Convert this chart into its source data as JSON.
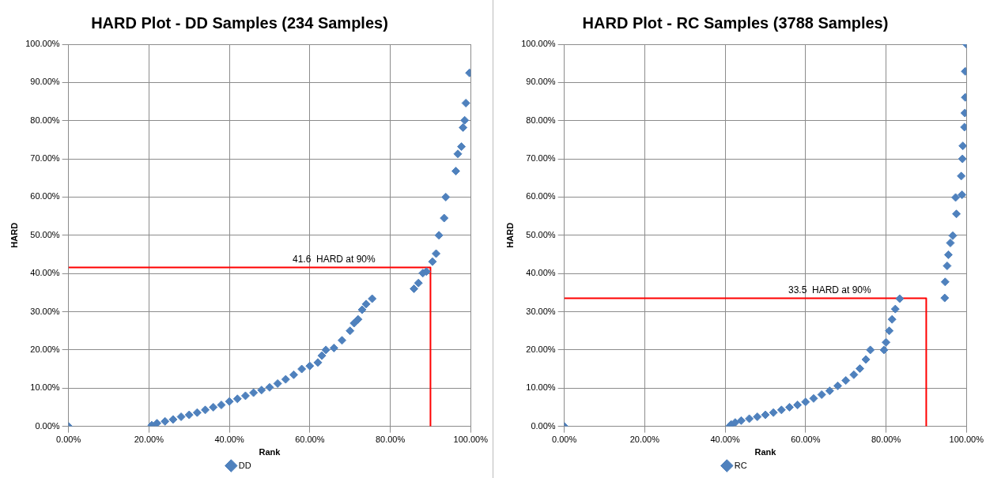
{
  "chart_data": [
    {
      "type": "scatter",
      "title": "HARD Plot - DD Samples (234 Samples)",
      "xlabel": "Rank",
      "ylabel": "HARD",
      "marker": "diamond",
      "grid": true,
      "legend": "bottom",
      "xlim": [
        0,
        100
      ],
      "ylim": [
        0,
        100
      ],
      "xticks": [
        {
          "value": 0,
          "label": "0.00%"
        },
        {
          "value": 20,
          "label": "20.00%"
        },
        {
          "value": 40,
          "label": "40.00%"
        },
        {
          "value": 60,
          "label": "60.00%"
        },
        {
          "value": 80,
          "label": "80.00%"
        },
        {
          "value": 100,
          "label": "100.00%"
        }
      ],
      "yticks": [
        {
          "value": 0,
          "label": "0.00%"
        },
        {
          "value": 10,
          "label": "10.00%"
        },
        {
          "value": 20,
          "label": "20.00%"
        },
        {
          "value": 30,
          "label": "30.00%"
        },
        {
          "value": 40,
          "label": "40.00%"
        },
        {
          "value": 50,
          "label": "50.00%"
        },
        {
          "value": 60,
          "label": "60.00%"
        },
        {
          "value": 70,
          "label": "70.00%"
        },
        {
          "value": 80,
          "label": "80.00%"
        },
        {
          "value": 90,
          "label": "90.00%"
        },
        {
          "value": 100,
          "label": "100.00%"
        }
      ],
      "series": [
        {
          "name": "DD",
          "color": "#4f81bd",
          "x": [
            0,
            20.7,
            22,
            24,
            26,
            28,
            30,
            32,
            34,
            36,
            38,
            40,
            42,
            44,
            46,
            48,
            50,
            52,
            54,
            56,
            58,
            60,
            62,
            63,
            64,
            66,
            68,
            70,
            71,
            72,
            73,
            74,
            75.5,
            85.9,
            87,
            88.1,
            89,
            90.5,
            91.4,
            92.1,
            93.4,
            93.8,
            96.3,
            96.8,
            97.7,
            98.1,
            98.5,
            98.8,
            99.7
          ],
          "values": [
            0,
            0.3,
            0.8,
            1.3,
            1.8,
            2.5,
            3,
            3.6,
            4.3,
            5,
            5.6,
            6.5,
            7.2,
            8,
            8.8,
            9.5,
            10.2,
            11.2,
            12.3,
            13.5,
            15,
            15.8,
            16.7,
            18.5,
            20,
            20.5,
            22.5,
            25,
            27,
            28,
            30.5,
            32,
            33.4,
            36,
            37.5,
            40.1,
            40.5,
            43.1,
            45.2,
            50,
            54.5,
            60,
            66.8,
            71.3,
            73.2,
            78.2,
            80.1,
            84.6,
            92.5
          ]
        },
        {
          "type": "line",
          "marker": "none",
          "color": "#ff0000",
          "x": [
            0,
            90,
            90
          ],
          "values": [
            41.6,
            41.6,
            0
          ]
        }
      ],
      "annotations": [
        {
          "text": "41.6  HARD at 90%",
          "x": 66,
          "y": 41.6
        }
      ]
    },
    {
      "type": "scatter",
      "title": "HARD Plot - RC Samples (3788 Samples)",
      "xlabel": "Rank",
      "ylabel": "HARD",
      "marker": "diamond",
      "grid": true,
      "legend": "bottom",
      "xlim": [
        0,
        100
      ],
      "ylim": [
        0,
        100
      ],
      "xticks": [
        {
          "value": 0,
          "label": "0.00%"
        },
        {
          "value": 20,
          "label": "20.00%"
        },
        {
          "value": 40,
          "label": "40.00%"
        },
        {
          "value": 60,
          "label": "60.00%"
        },
        {
          "value": 80,
          "label": "80.00%"
        },
        {
          "value": 100,
          "label": "100.00%"
        }
      ],
      "yticks": [
        {
          "value": 0,
          "label": "0.00%"
        },
        {
          "value": 10,
          "label": "10.00%"
        },
        {
          "value": 20,
          "label": "20.00%"
        },
        {
          "value": 30,
          "label": "30.00%"
        },
        {
          "value": 40,
          "label": "40.00%"
        },
        {
          "value": 50,
          "label": "50.00%"
        },
        {
          "value": 60,
          "label": "60.00%"
        },
        {
          "value": 70,
          "label": "70.00%"
        },
        {
          "value": 80,
          "label": "80.00%"
        },
        {
          "value": 90,
          "label": "90.00%"
        },
        {
          "value": 100,
          "label": "100.00%"
        }
      ],
      "series": [
        {
          "name": "RC",
          "color": "#4f81bd",
          "x": [
            0,
            41.1,
            41.5,
            42.5,
            44,
            46,
            48,
            50,
            52,
            54,
            56,
            58,
            60,
            62,
            64,
            66,
            68,
            70,
            72,
            73.5,
            75,
            76.1,
            79.5,
            80,
            80.8,
            81.5,
            82.3,
            83.4,
            94.6,
            94.7,
            95.2,
            95.5,
            96,
            96.6,
            97.5,
            97.3,
            98.9,
            98.7,
            99,
            99.1,
            99.5,
            99.6,
            99.7,
            99.7,
            100
          ],
          "values": [
            0,
            0,
            0.5,
            1,
            1.5,
            2,
            2.5,
            3,
            3.6,
            4.3,
            5,
            5.6,
            6.4,
            7.3,
            8.3,
            9.3,
            10.6,
            12,
            13.5,
            15.1,
            17.5,
            20,
            20,
            22,
            25,
            28,
            30.7,
            33.4,
            33.6,
            37.8,
            42,
            44.9,
            48,
            49.9,
            55.6,
            59.9,
            60.6,
            65.5,
            70,
            73.4,
            78.3,
            82,
            86.1,
            92.9,
            100
          ]
        },
        {
          "type": "line",
          "marker": "none",
          "color": "#ff0000",
          "x": [
            0,
            90,
            90
          ],
          "values": [
            33.5,
            33.5,
            0
          ]
        }
      ],
      "annotations": [
        {
          "text": "33.5  HARD at 90%",
          "x": 66,
          "y": 33.5
        }
      ]
    }
  ]
}
